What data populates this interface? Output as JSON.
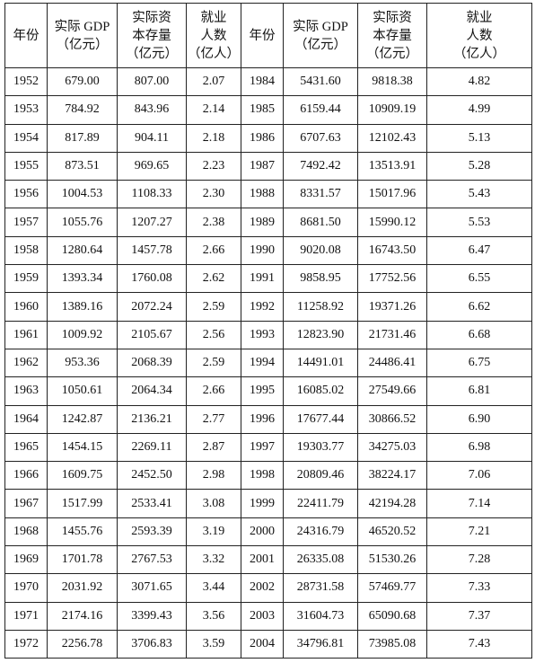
{
  "table": {
    "headers": [
      [
        "年份"
      ],
      [
        "实际 GDP",
        "（亿元）"
      ],
      [
        "实际资",
        "本存量",
        "（亿元）"
      ],
      [
        "就业",
        "人数",
        "（亿人）"
      ],
      [
        "年份"
      ],
      [
        "实际 GDP",
        "（亿元）"
      ],
      [
        "实际资",
        "本存量",
        "（亿元）"
      ],
      [
        "就业",
        "人数",
        "（亿人）"
      ]
    ],
    "rows": [
      [
        "1952",
        "679.00",
        "807.00",
        "2.07",
        "1984",
        "5431.60",
        "9818.38",
        "4.82"
      ],
      [
        "1953",
        "784.92",
        "843.96",
        "2.14",
        "1985",
        "6159.44",
        "10909.19",
        "4.99"
      ],
      [
        "1954",
        "817.89",
        "904.11",
        "2.18",
        "1986",
        "6707.63",
        "12102.43",
        "5.13"
      ],
      [
        "1955",
        "873.51",
        "969.65",
        "2.23",
        "1987",
        "7492.42",
        "13513.91",
        "5.28"
      ],
      [
        "1956",
        "1004.53",
        "1108.33",
        "2.30",
        "1988",
        "8331.57",
        "15017.96",
        "5.43"
      ],
      [
        "1957",
        "1055.76",
        "1207.27",
        "2.38",
        "1989",
        "8681.50",
        "15990.12",
        "5.53"
      ],
      [
        "1958",
        "1280.64",
        "1457.78",
        "2.66",
        "1990",
        "9020.08",
        "16743.50",
        "6.47"
      ],
      [
        "1959",
        "1393.34",
        "1760.08",
        "2.62",
        "1991",
        "9858.95",
        "17752.56",
        "6.55"
      ],
      [
        "1960",
        "1389.16",
        "2072.24",
        "2.59",
        "1992",
        "11258.92",
        "19371.26",
        "6.62"
      ],
      [
        "1961",
        "1009.92",
        "2105.67",
        "2.56",
        "1993",
        "12823.90",
        "21731.46",
        "6.68"
      ],
      [
        "1962",
        "953.36",
        "2068.39",
        "2.59",
        "1994",
        "14491.01",
        "24486.41",
        "6.75"
      ],
      [
        "1963",
        "1050.61",
        "2064.34",
        "2.66",
        "1995",
        "16085.02",
        "27549.66",
        "6.81"
      ],
      [
        "1964",
        "1242.87",
        "2136.21",
        "2.77",
        "1996",
        "17677.44",
        "30866.52",
        "6.90"
      ],
      [
        "1965",
        "1454.15",
        "2269.11",
        "2.87",
        "1997",
        "19303.77",
        "34275.03",
        "6.98"
      ],
      [
        "1966",
        "1609.75",
        "2452.50",
        "2.98",
        "1998",
        "20809.46",
        "38224.17",
        "7.06"
      ],
      [
        "1967",
        "1517.99",
        "2533.41",
        "3.08",
        "1999",
        "22411.79",
        "42194.28",
        "7.14"
      ],
      [
        "1968",
        "1455.76",
        "2593.39",
        "3.19",
        "2000",
        "24316.79",
        "46520.52",
        "7.21"
      ],
      [
        "1969",
        "1701.78",
        "2767.53",
        "3.32",
        "2001",
        "26335.08",
        "51530.26",
        "7.28"
      ],
      [
        "1970",
        "2031.92",
        "3071.65",
        "3.44",
        "2002",
        "28731.58",
        "57469.77",
        "7.33"
      ],
      [
        "1971",
        "2174.16",
        "3399.43",
        "3.56",
        "2003",
        "31604.73",
        "65090.68",
        "7.37"
      ],
      [
        "1972",
        "2256.78",
        "3706.83",
        "3.59",
        "2004",
        "34796.81",
        "73985.08",
        "7.43"
      ]
    ]
  }
}
